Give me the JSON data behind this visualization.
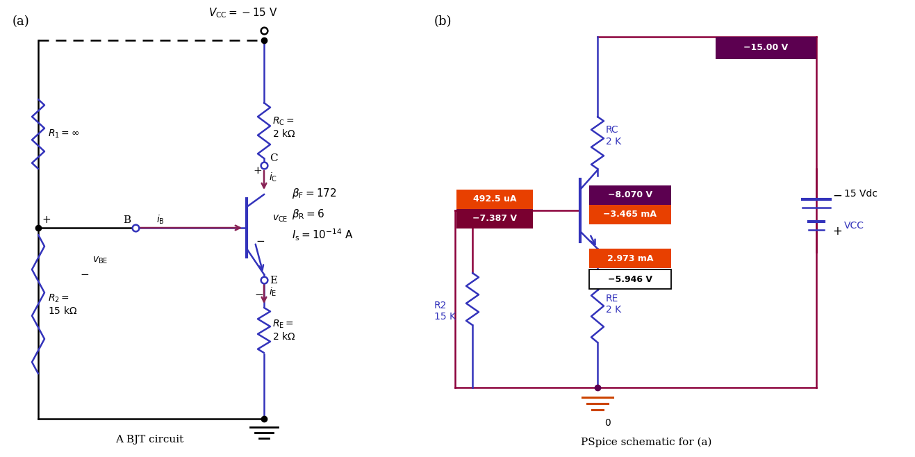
{
  "fig_width": 13.17,
  "fig_height": 6.58,
  "bg_color": "#ffffff",
  "label_a": "A BJT circuit",
  "label_b": "PSpice schematic for (a)",
  "blue": "#3333bb",
  "dark_purple": "#5c0050",
  "orange_red": "#e84000",
  "dark_maroon": "#7a0030",
  "red_wire": "#8b003a",
  "arrow_purple": "#882255",
  "pspice_v1": "−15.00 V",
  "pspice_v2": "−8.070 V",
  "pspice_v3": "−3.465 mA",
  "pspice_v4": "492.5 uA",
  "pspice_v5": "−7.387 V",
  "pspice_v6": "2.973 mA",
  "pspice_v7": "−5.946 V",
  "pspice_VCC": "15 Vdc",
  "pspice_VCC2": "VCC"
}
